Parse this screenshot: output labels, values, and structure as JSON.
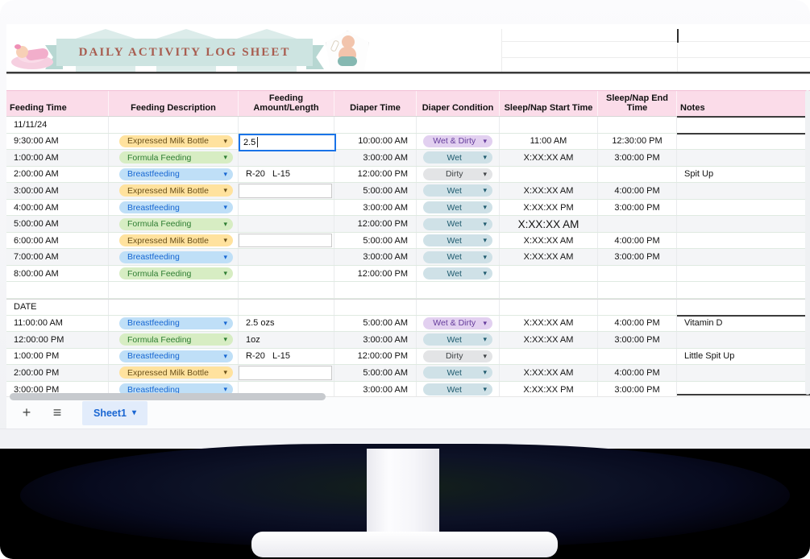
{
  "banner": {
    "title": "DAILY ACTIVITY LOG SHEET",
    "left_image": "sleeping-baby-on-pink-cloud",
    "right_image": "baby-with-bottle"
  },
  "colors": {
    "accent_blue": "#1a73e8",
    "header_pink": "#fbdce9",
    "banner_teal": "#cde4e1",
    "title_text": "#a85d50",
    "gridline_green": "#dfeae1",
    "tab_blue_bg": "#e2ecfb",
    "tab_blue_text": "#1a66d2"
  },
  "chip_styles": {
    "Expressed Milk Bottle": {
      "bg": "#ffe29e",
      "fg": "#6a501a"
    },
    "Formula Feeding": {
      "bg": "#d7edc3",
      "fg": "#2e7d32"
    },
    "Breastfeeding": {
      "bg": "#bfdff7",
      "fg": "#1767d2"
    },
    "Wet & Dirty": {
      "bg": "#e2d0f0",
      "fg": "#653c9c"
    },
    "Wet": {
      "bg": "#cfe1e7",
      "fg": "#1e5a6e"
    },
    "Dirty": {
      "bg": "#e3e4e6",
      "fg": "#3f4346"
    }
  },
  "columns": [
    {
      "label": "Feeding Time",
      "align": "left"
    },
    {
      "label": "Feeding Description",
      "align": "center"
    },
    {
      "label": "Feeding Amount/Length",
      "align": "center"
    },
    {
      "label": "Diaper Time",
      "align": "center"
    },
    {
      "label": "Diaper Condition",
      "align": "center"
    },
    {
      "label": "Sleep/Nap Start Time",
      "align": "center"
    },
    {
      "label": "Sleep/Nap End Time",
      "align": "center"
    },
    {
      "label": "Notes",
      "align": "left"
    }
  ],
  "active_cell": {
    "value": "2.5"
  },
  "rows": [
    {
      "type": "date",
      "feeding_time": "11/11/24"
    },
    {
      "type": "data",
      "feeding_time": "9:30:00 AM",
      "feeding_desc": "Expressed Milk Bottle",
      "amount": "",
      "active": true,
      "diaper_time": "10:00:00 AM",
      "diaper_cond": "Wet & Dirty",
      "sleep_start": "11:00 AM",
      "sleep_end": "12:30:00 PM",
      "notes": ""
    },
    {
      "type": "data",
      "shaded": true,
      "feeding_time": "1:00:00 AM",
      "feeding_desc": "Formula Feeding",
      "amount": "",
      "diaper_time": "3:00:00 AM",
      "diaper_cond": "Wet",
      "sleep_start": "X:XX:XX AM",
      "sleep_end": "3:00:00 PM",
      "notes": ""
    },
    {
      "type": "data",
      "feeding_time": "2:00:00 AM",
      "feeding_desc": "Breastfeeding",
      "amount": "R-20   L-15",
      "diaper_time": "12:00:00 PM",
      "diaper_cond": "Dirty",
      "sleep_start": "",
      "sleep_end": "",
      "notes": "Spit Up"
    },
    {
      "type": "data",
      "shaded": true,
      "feeding_time": "3:00:00 AM",
      "feeding_desc": "Expressed Milk Bottle",
      "amount": "",
      "boxed": true,
      "diaper_time": "5:00:00 AM",
      "diaper_cond": "Wet",
      "sleep_start": "X:XX:XX AM",
      "sleep_end": "4:00:00 PM",
      "notes": ""
    },
    {
      "type": "data",
      "feeding_time": "4:00:00 AM",
      "feeding_desc": "Breastfeeding",
      "amount": "",
      "diaper_time": "3:00:00 AM",
      "diaper_cond": "Wet",
      "sleep_start": "X:XX:XX PM",
      "sleep_end": "3:00:00 PM",
      "notes": ""
    },
    {
      "type": "data",
      "shaded": true,
      "feeding_time": "5:00:00 AM",
      "feeding_desc": "Formula Feeding",
      "amount": "",
      "diaper_time": "12:00:00 PM",
      "diaper_cond": "Wet",
      "sleep_start": "X:XX:XX AM",
      "sleep_start_large": true,
      "sleep_end": "",
      "notes": ""
    },
    {
      "type": "data",
      "feeding_time": "6:00:00 AM",
      "feeding_desc": "Expressed Milk Bottle",
      "amount": "",
      "boxed": true,
      "diaper_time": "5:00:00 AM",
      "diaper_cond": "Wet",
      "sleep_start": "X:XX:XX AM",
      "sleep_end": "4:00:00 PM",
      "notes": ""
    },
    {
      "type": "data",
      "shaded": true,
      "feeding_time": "7:00:00 AM",
      "feeding_desc": "Breastfeeding",
      "amount": "",
      "diaper_time": "3:00:00 AM",
      "diaper_cond": "Wet",
      "sleep_start": "X:XX:XX AM",
      "sleep_end": "3:00:00 PM",
      "notes": ""
    },
    {
      "type": "data",
      "feeding_time": "8:00:00 AM",
      "feeding_desc": "Formula Feeding",
      "amount": "",
      "diaper_time": "12:00:00 PM",
      "diaper_cond": "Wet",
      "sleep_start": "",
      "sleep_end": "",
      "notes": ""
    },
    {
      "type": "empty"
    },
    {
      "type": "label",
      "feeding_time": "DATE"
    },
    {
      "type": "data",
      "feeding_time": "11:00:00 AM",
      "feeding_desc": "Breastfeeding",
      "amount": "2.5 ozs",
      "diaper_time": "5:00:00 AM",
      "diaper_cond": "Wet & Dirty",
      "sleep_start": "X:XX:XX AM",
      "sleep_end": "4:00:00 PM",
      "notes": "Vitamin D"
    },
    {
      "type": "data",
      "shaded": true,
      "feeding_time": "12:00:00 PM",
      "feeding_desc": "Formula Feeding",
      "amount": "1oz",
      "diaper_time": "3:00:00 AM",
      "diaper_cond": "Wet",
      "sleep_start": "X:XX:XX AM",
      "sleep_end": "3:00:00 PM",
      "notes": ""
    },
    {
      "type": "data",
      "feeding_time": "1:00:00 PM",
      "feeding_desc": "Breastfeeding",
      "amount": "R-20   L-15",
      "diaper_time": "12:00:00 PM",
      "diaper_cond": "Dirty",
      "sleep_start": "",
      "sleep_end": "",
      "notes": "Little Spit Up"
    },
    {
      "type": "data",
      "shaded": true,
      "feeding_time": "2:00:00 PM",
      "feeding_desc": "Expressed Milk Bottle",
      "amount": "",
      "boxed": true,
      "diaper_time": "5:00:00 AM",
      "diaper_cond": "Wet",
      "sleep_start": "X:XX:XX AM",
      "sleep_end": "4:00:00 PM",
      "notes": ""
    },
    {
      "type": "data",
      "feeding_time": "3:00:00 PM",
      "feeding_desc": "Breastfeeding",
      "amount": "",
      "diaper_time": "3:00:00 AM",
      "diaper_cond": "Wet",
      "sleep_start": "X:XX:XX PM",
      "sleep_end": "3:00:00 PM",
      "notes": ""
    }
  ],
  "footer": {
    "sheet_tab_label": "Sheet1",
    "add_icon": "+",
    "menu_icon": "≡",
    "tab_caret": "▾"
  }
}
